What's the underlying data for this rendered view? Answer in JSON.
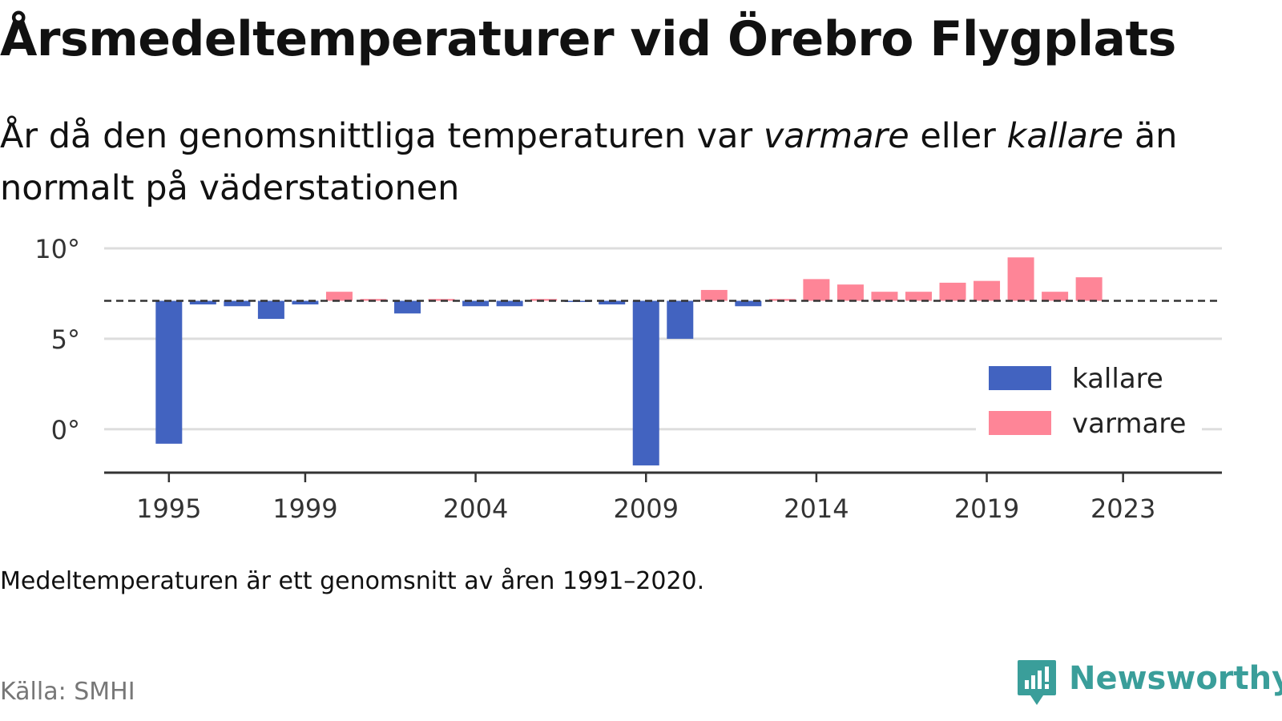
{
  "title": "Årsmedeltemperaturer vid Örebro Flygplats",
  "subtitle": {
    "p1": "År då den genomsnittliga temperaturen var ",
    "warm_word": "varmare",
    "p2": " eller ",
    "cold_word": "kallare",
    "p3": " än normalt på väderstationen"
  },
  "note": "Medeltemperaturen är ett genomsnitt av åren 1991–2020.",
  "source": "Källa: SMHI",
  "brand": {
    "name": "Newsworthy",
    "color": "#3a9e9a"
  },
  "colors": {
    "kallare": "#4263c0",
    "varmare": "#fe8597",
    "grid": "#dddddd",
    "axis": "#333333",
    "reference": "#333333"
  },
  "chart_data": {
    "type": "bar",
    "x": [
      1995,
      1996,
      1997,
      1998,
      1999,
      2000,
      2001,
      2002,
      2003,
      2004,
      2005,
      2006,
      2007,
      2008,
      2009,
      2010,
      2011,
      2012,
      2013,
      2014,
      2015,
      2016,
      2017,
      2018,
      2019,
      2020,
      2021,
      2022
    ],
    "values": [
      -0.8,
      6.9,
      6.8,
      6.1,
      6.9,
      7.6,
      7.2,
      6.4,
      7.2,
      6.8,
      6.8,
      7.2,
      7.1,
      6.9,
      -2.0,
      5.0,
      7.7,
      6.8,
      7.2,
      8.3,
      8.0,
      7.6,
      7.6,
      8.1,
      8.2,
      9.5,
      7.6,
      8.4
    ],
    "reference": 7.1,
    "ylim": [
      -2.4,
      10
    ],
    "yticks": [
      0,
      5,
      10
    ],
    "ytick_labels": [
      "0°",
      "5°",
      "10°"
    ],
    "xticks": [
      1995,
      1999,
      2004,
      2009,
      2014,
      2019,
      2023
    ],
    "xtick_labels": [
      "1995",
      "1999",
      "2004",
      "2009",
      "2014",
      "2019",
      "2023"
    ],
    "xlim": [
      1993.1,
      2025.9
    ],
    "legend": {
      "position": "right",
      "items": [
        {
          "key": "kallare",
          "label": "kallare"
        },
        {
          "key": "varmare",
          "label": "varmare"
        }
      ]
    }
  }
}
